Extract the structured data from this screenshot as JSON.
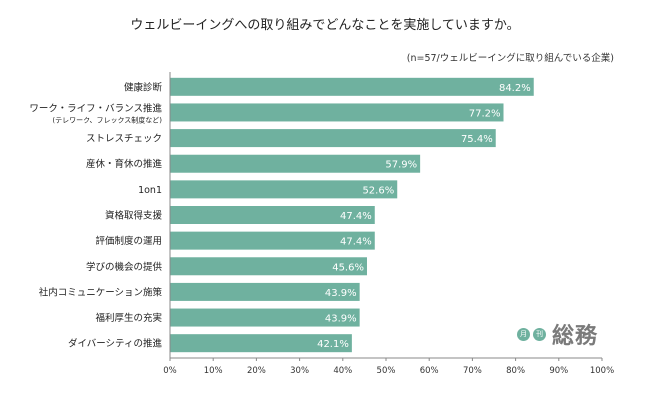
{
  "title": "ウェルビーイングへの取り組みでどんなことを実施していますか。",
  "note": "(n=57/ウェルビーイングに取り組んでいる企業)",
  "colors": {
    "bar": "#6fb19f",
    "axis": "#888888",
    "grid": "#d9d9d9"
  },
  "logo": {
    "badge1": "月",
    "badge2": "刊",
    "word": "総務"
  },
  "chart_data": {
    "type": "bar",
    "orientation": "horizontal",
    "categories": [
      [
        "健康診断"
      ],
      [
        "ワーク・ライフ・バランス推進",
        "(テレワーク、フレックス制度など)"
      ],
      [
        "ストレスチェック"
      ],
      [
        "産休・育休の推進"
      ],
      [
        "1on1"
      ],
      [
        "資格取得支援"
      ],
      [
        "評価制度の運用"
      ],
      [
        "学びの機会の提供"
      ],
      [
        "社内コミュニケーション施策"
      ],
      [
        "福利厚生の充実"
      ],
      [
        "ダイバーシティの推進"
      ]
    ],
    "values": [
      84.2,
      77.2,
      75.4,
      57.9,
      52.6,
      47.4,
      47.4,
      45.6,
      43.9,
      43.9,
      42.1
    ],
    "value_labels": [
      "84.2%",
      "77.2%",
      "75.4%",
      "57.9%",
      "52.6%",
      "47.4%",
      "47.4%",
      "45.6%",
      "43.9%",
      "43.9%",
      "42.1%"
    ],
    "xlim": [
      0,
      100
    ],
    "xticks": [
      0,
      10,
      20,
      30,
      40,
      50,
      60,
      70,
      80,
      90,
      100
    ],
    "xtick_labels": [
      "0%",
      "10%",
      "20%",
      "30%",
      "40%",
      "50%",
      "60%",
      "70%",
      "80%",
      "90%",
      "100%"
    ],
    "grid": false,
    "legend": "none"
  }
}
